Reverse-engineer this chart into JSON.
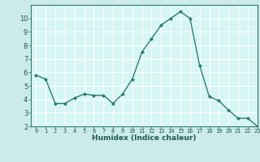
{
  "x": [
    0,
    1,
    2,
    3,
    4,
    5,
    6,
    7,
    8,
    9,
    10,
    11,
    12,
    13,
    14,
    15,
    16,
    17,
    18,
    19,
    20,
    21,
    22,
    23
  ],
  "y": [
    5.8,
    5.5,
    3.7,
    3.7,
    4.1,
    4.4,
    4.3,
    4.3,
    3.7,
    4.4,
    5.5,
    7.5,
    8.5,
    9.5,
    10.0,
    10.5,
    10.0,
    6.5,
    4.2,
    3.9,
    3.2,
    2.6,
    2.6,
    2.0
  ],
  "xlabel": "Humidex (Indice chaleur)",
  "ylim": [
    2,
    11
  ],
  "xlim": [
    -0.5,
    23
  ],
  "yticks": [
    2,
    3,
    4,
    5,
    6,
    7,
    8,
    9,
    10
  ],
  "xticks": [
    0,
    1,
    2,
    3,
    4,
    5,
    6,
    7,
    8,
    9,
    10,
    11,
    12,
    13,
    14,
    15,
    16,
    17,
    18,
    19,
    20,
    21,
    22,
    23
  ],
  "line_color": "#2e7d6e",
  "marker": "D",
  "marker_size": 2.0,
  "bg_color": "#cceaea",
  "plot_bg_color": "#d6f5f5",
  "grid_color": "#ffffff",
  "label_color": "#1a5c52",
  "tick_color": "#1a5c52",
  "spine_color": "#2e7d6e",
  "xlabel_fontsize": 6.5,
  "tick_fontsize_x": 5.0,
  "tick_fontsize_y": 6.0
}
